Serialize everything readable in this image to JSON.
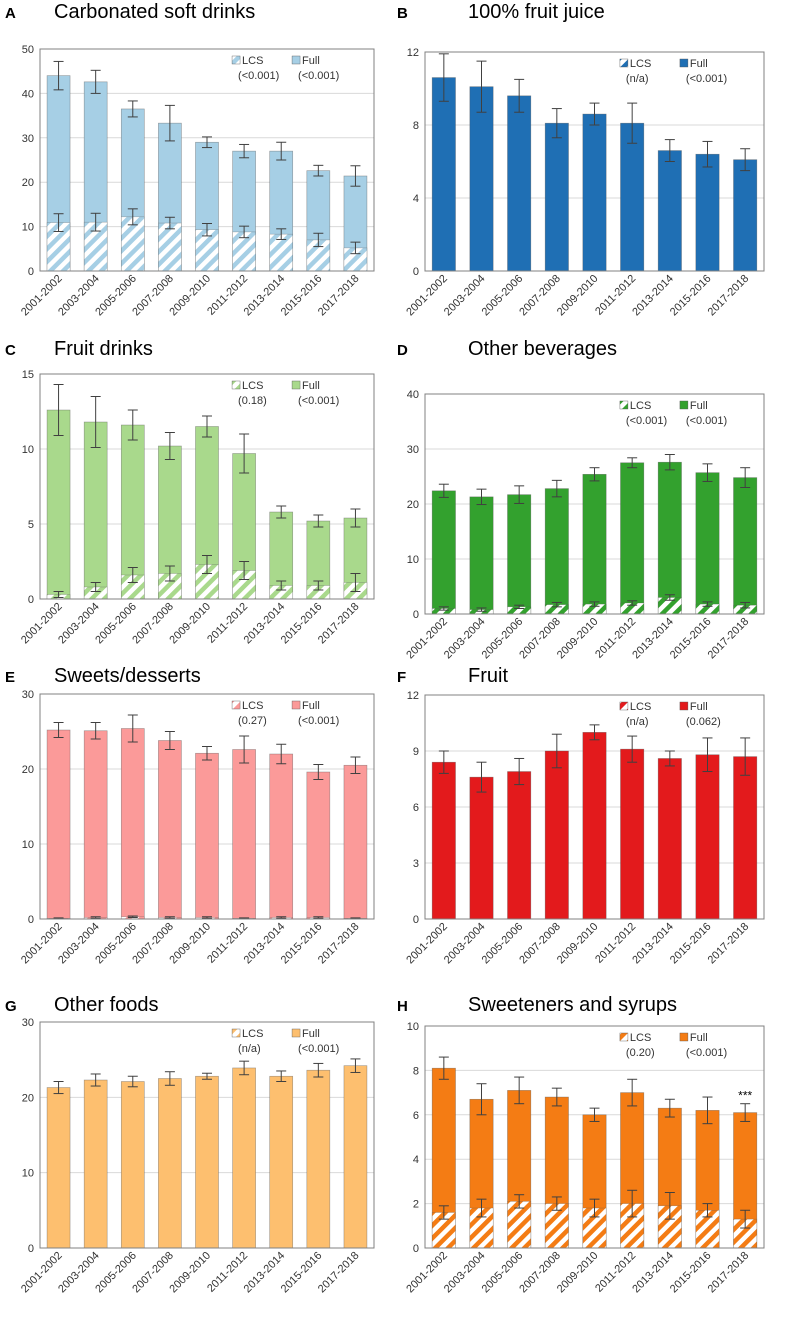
{
  "colors": {
    "axis": "#808080",
    "grid": "#d9d9d9",
    "errorbar": "#404040",
    "label": "#333333",
    "title": "#000000",
    "legend": "#333333",
    "white": "#ffffff",
    "stroke_light": "#7f9fb8",
    "stroke_dark": "#555555"
  },
  "chart_data": [
    {
      "type": "bar",
      "stacked": true,
      "panel_letter": "A",
      "title": "Carbonated soft drinks",
      "categories": [
        "2001-2002",
        "2003-2004",
        "2005-2006",
        "2007-2008",
        "2009-2010",
        "2011-2012",
        "2013-2014",
        "2015-2016",
        "2017-2018"
      ],
      "ylim": [
        0,
        50
      ],
      "yticks": [
        0,
        10,
        20,
        30,
        40,
        50
      ],
      "ytick_labels": [
        "0",
        "10",
        "20",
        "30",
        "40",
        "50"
      ],
      "grid": true,
      "series": [
        {
          "name": "LCS",
          "pattern": "hatch",
          "values": [
            10.9,
            11.0,
            12.2,
            10.8,
            9.3,
            8.8,
            8.3,
            7.0,
            5.2
          ],
          "errors": [
            2.0,
            2.0,
            1.8,
            1.3,
            1.4,
            1.3,
            1.2,
            1.5,
            1.3
          ]
        },
        {
          "name": "Full",
          "pattern": "solid",
          "values": [
            44.0,
            42.6,
            36.5,
            33.3,
            29.0,
            27.0,
            27.0,
            22.6,
            21.4
          ],
          "errors": [
            3.2,
            2.6,
            1.8,
            4.0,
            1.2,
            1.5,
            2.0,
            1.2,
            2.3
          ]
        }
      ],
      "color": "#a6cfe5",
      "legend": {
        "lcs_label": "LCS",
        "lcs_p": "(<0.001)",
        "full_label": "Full",
        "full_p": "(<0.001)"
      },
      "annotations": []
    },
    {
      "type": "bar",
      "stacked": true,
      "panel_letter": "B",
      "title": "100% fruit juice",
      "categories": [
        "2001-2002",
        "2003-2004",
        "2005-2006",
        "2007-2008",
        "2009-2010",
        "2011-2012",
        "2013-2014",
        "2015-2016",
        "2017-2018"
      ],
      "ylim": [
        0,
        12
      ],
      "yticks": [
        0,
        4,
        8,
        12
      ],
      "ytick_labels": [
        "0",
        "4",
        "8",
        "12"
      ],
      "grid": true,
      "series": [
        {
          "name": "LCS",
          "pattern": "hatch",
          "values": [
            0,
            0,
            0,
            0,
            0,
            0,
            0,
            0,
            0
          ],
          "errors": [
            0,
            0,
            0,
            0,
            0,
            0,
            0,
            0,
            0
          ]
        },
        {
          "name": "Full",
          "pattern": "solid",
          "values": [
            10.6,
            10.1,
            9.6,
            8.1,
            8.6,
            8.1,
            6.6,
            6.4,
            6.1
          ],
          "errors": [
            1.3,
            1.4,
            0.9,
            0.8,
            0.6,
            1.1,
            0.6,
            0.7,
            0.6
          ]
        }
      ],
      "color": "#1f6fb4",
      "legend": {
        "lcs_label": "LCS",
        "lcs_p": "(n/a)",
        "full_label": "Full",
        "full_p": "(<0.001)"
      },
      "annotations": []
    },
    {
      "type": "bar",
      "stacked": true,
      "panel_letter": "C",
      "title": "Fruit drinks",
      "categories": [
        "2001-2002",
        "2003-2004",
        "2005-2006",
        "2007-2008",
        "2009-2010",
        "2011-2012",
        "2013-2014",
        "2015-2016",
        "2017-2018"
      ],
      "ylim": [
        0,
        15
      ],
      "yticks": [
        0,
        5,
        10,
        15
      ],
      "ytick_labels": [
        "0",
        "5",
        "10",
        "15"
      ],
      "grid": true,
      "series": [
        {
          "name": "LCS",
          "pattern": "hatch",
          "values": [
            0.3,
            0.8,
            1.6,
            1.7,
            2.3,
            1.9,
            0.9,
            0.9,
            1.1
          ],
          "errors": [
            0.2,
            0.3,
            0.5,
            0.5,
            0.6,
            0.6,
            0.3,
            0.3,
            0.6
          ]
        },
        {
          "name": "Full",
          "pattern": "solid",
          "values": [
            12.6,
            11.8,
            11.6,
            10.2,
            11.5,
            9.7,
            5.8,
            5.2,
            5.4
          ],
          "errors": [
            1.7,
            1.7,
            1.0,
            0.9,
            0.7,
            1.3,
            0.4,
            0.4,
            0.6
          ]
        }
      ],
      "color": "#a9d98c",
      "legend": {
        "lcs_label": "LCS",
        "lcs_p": "(0.18)",
        "full_label": "Full",
        "full_p": "(<0.001)"
      },
      "annotations": []
    },
    {
      "type": "bar",
      "stacked": true,
      "panel_letter": "D",
      "title": "Other beverages",
      "categories": [
        "2001-2002",
        "2003-2004",
        "2005-2006",
        "2007-2008",
        "2009-2010",
        "2011-2012",
        "2013-2014",
        "2015-2016",
        "2017-2018"
      ],
      "ylim": [
        0,
        40
      ],
      "yticks": [
        0,
        10,
        20,
        30,
        40
      ],
      "ytick_labels": [
        "0",
        "10",
        "20",
        "30",
        "40"
      ],
      "grid": true,
      "series": [
        {
          "name": "LCS",
          "pattern": "hatch",
          "values": [
            1.0,
            0.8,
            1.3,
            1.7,
            1.8,
            2.0,
            3.0,
            1.8,
            1.6
          ],
          "errors": [
            0.3,
            0.3,
            0.3,
            0.4,
            0.4,
            0.4,
            0.5,
            0.4,
            0.5
          ]
        },
        {
          "name": "Full",
          "pattern": "solid",
          "values": [
            22.4,
            21.3,
            21.7,
            22.8,
            25.4,
            27.5,
            27.6,
            25.7,
            24.8
          ],
          "errors": [
            1.2,
            1.4,
            1.6,
            1.5,
            1.2,
            0.9,
            1.4,
            1.6,
            1.8
          ]
        }
      ],
      "color": "#33a12e",
      "legend": {
        "lcs_label": "LCS",
        "lcs_p": "(<0.001)",
        "full_label": "Full",
        "full_p": "(<0.001)"
      },
      "annotations": []
    },
    {
      "type": "bar",
      "stacked": true,
      "panel_letter": "E",
      "title": "Sweets/desserts",
      "categories": [
        "2001-2002",
        "2003-2004",
        "2005-2006",
        "2007-2008",
        "2009-2010",
        "2011-2012",
        "2013-2014",
        "2015-2016",
        "2017-2018"
      ],
      "ylim": [
        0,
        30
      ],
      "yticks": [
        0,
        10,
        20,
        30
      ],
      "ytick_labels": [
        "0",
        "10",
        "20",
        "30"
      ],
      "grid": true,
      "series": [
        {
          "name": "LCS",
          "pattern": "hatch",
          "values": [
            0.1,
            0.2,
            0.3,
            0.2,
            0.2,
            0.1,
            0.2,
            0.2,
            0.1
          ],
          "errors": [
            0.05,
            0.1,
            0.1,
            0.1,
            0.1,
            0.05,
            0.1,
            0.1,
            0.05
          ]
        },
        {
          "name": "Full",
          "pattern": "solid",
          "values": [
            25.2,
            25.1,
            25.4,
            23.8,
            22.1,
            22.6,
            22.0,
            19.6,
            20.5
          ],
          "errors": [
            1.0,
            1.1,
            1.8,
            1.2,
            0.9,
            1.8,
            1.3,
            1.0,
            1.1
          ]
        }
      ],
      "color": "#fb9a99",
      "legend": {
        "lcs_label": "LCS",
        "lcs_p": "(0.27)",
        "full_label": "Full",
        "full_p": "(<0.001)"
      },
      "annotations": []
    },
    {
      "type": "bar",
      "stacked": true,
      "panel_letter": "F",
      "title": "Fruit",
      "categories": [
        "2001-2002",
        "2003-2004",
        "2005-2006",
        "2007-2008",
        "2009-2010",
        "2011-2012",
        "2013-2014",
        "2015-2016",
        "2017-2018"
      ],
      "ylim": [
        0,
        12
      ],
      "yticks": [
        0,
        3,
        6,
        9,
        12
      ],
      "ytick_labels": [
        "0",
        "3",
        "6",
        "9",
        "12"
      ],
      "grid": true,
      "series": [
        {
          "name": "LCS",
          "pattern": "hatch",
          "values": [
            0,
            0,
            0,
            0,
            0,
            0,
            0,
            0,
            0
          ],
          "errors": [
            0,
            0,
            0,
            0,
            0,
            0,
            0,
            0,
            0
          ]
        },
        {
          "name": "Full",
          "pattern": "solid",
          "values": [
            8.4,
            7.6,
            7.9,
            9.0,
            10.0,
            9.1,
            8.6,
            8.8,
            8.7
          ],
          "errors": [
            0.6,
            0.8,
            0.7,
            0.9,
            0.4,
            0.7,
            0.4,
            0.9,
            1.0
          ]
        }
      ],
      "color": "#e31a1c",
      "legend": {
        "lcs_label": "LCS",
        "lcs_p": "(n/a)",
        "full_label": "Full",
        "full_p": "(0.062)"
      },
      "annotations": []
    },
    {
      "type": "bar",
      "stacked": true,
      "panel_letter": "G",
      "title": "Other foods",
      "categories": [
        "2001-2002",
        "2003-2004",
        "2005-2006",
        "2007-2008",
        "2009-2010",
        "2011-2012",
        "2013-2014",
        "2015-2016",
        "2017-2018"
      ],
      "ylim": [
        0,
        30
      ],
      "yticks": [
        0,
        10,
        20,
        30
      ],
      "ytick_labels": [
        "0",
        "10",
        "20",
        "30"
      ],
      "grid": true,
      "series": [
        {
          "name": "LCS",
          "pattern": "hatch",
          "values": [
            0,
            0,
            0,
            0,
            0,
            0,
            0,
            0,
            0
          ],
          "errors": [
            0,
            0,
            0,
            0,
            0,
            0,
            0,
            0,
            0
          ]
        },
        {
          "name": "Full",
          "pattern": "solid",
          "values": [
            21.3,
            22.3,
            22.1,
            22.5,
            22.8,
            23.9,
            22.8,
            23.6,
            24.2
          ],
          "errors": [
            0.8,
            0.8,
            0.7,
            0.9,
            0.4,
            0.9,
            0.7,
            0.9,
            0.9
          ]
        }
      ],
      "color": "#fdbf6f",
      "legend": {
        "lcs_label": "LCS",
        "lcs_p": "(n/a)",
        "full_label": "Full",
        "full_p": "(<0.001)"
      },
      "annotations": []
    },
    {
      "type": "bar",
      "stacked": true,
      "panel_letter": "H",
      "title": "Sweeteners and syrups",
      "categories": [
        "2001-2002",
        "2003-2004",
        "2005-2006",
        "2007-2008",
        "2009-2010",
        "2011-2012",
        "2013-2014",
        "2015-2016",
        "2017-2018"
      ],
      "ylim": [
        0,
        10
      ],
      "yticks": [
        0,
        2,
        4,
        6,
        8,
        10
      ],
      "ytick_labels": [
        "0",
        "2",
        "4",
        "6",
        "8",
        "10"
      ],
      "grid": true,
      "series": [
        {
          "name": "LCS",
          "pattern": "hatch",
          "values": [
            1.6,
            1.8,
            2.1,
            2.0,
            1.8,
            2.0,
            1.9,
            1.7,
            1.3
          ],
          "errors": [
            0.3,
            0.4,
            0.3,
            0.3,
            0.4,
            0.6,
            0.6,
            0.3,
            0.4
          ]
        },
        {
          "name": "Full",
          "pattern": "solid",
          "values": [
            8.1,
            6.7,
            7.1,
            6.8,
            6.0,
            7.0,
            6.3,
            6.2,
            6.1
          ],
          "errors": [
            0.5,
            0.7,
            0.6,
            0.4,
            0.3,
            0.6,
            0.4,
            0.6,
            0.4
          ]
        }
      ],
      "color": "#f47c14",
      "legend": {
        "lcs_label": "LCS",
        "lcs_p": "(0.20)",
        "full_label": "Full",
        "full_p": "(<0.001)"
      },
      "annotations": [
        {
          "category_index": 8,
          "text": "***"
        }
      ]
    }
  ]
}
